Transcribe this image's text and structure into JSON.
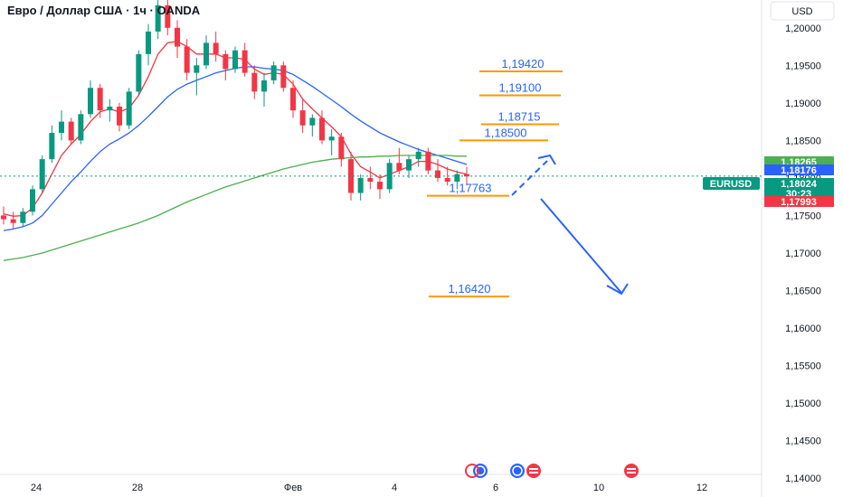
{
  "header": {
    "title": "Евро / Доллар США · 1ч · OANDA",
    "currency_button": "USD"
  },
  "price_axis": {
    "ticks": [
      "1,20000",
      "1,19500",
      "1,19000",
      "1,18500",
      "1,18000",
      "1,17500",
      "1,17000",
      "1,16500",
      "1,16000",
      "1,15500",
      "1,15000",
      "1,14500",
      "1,14000"
    ],
    "badges": [
      {
        "name": "upper-price-badge",
        "text": "1,18265",
        "color": "#4caf50"
      },
      {
        "name": "ma-price-badge",
        "text": "1,18176",
        "color": "#2962ff"
      },
      {
        "name": "last-price-badge",
        "text": "1,18024",
        "color": "#089981"
      },
      {
        "name": "countdown-badge",
        "text": "30:23",
        "color": "#089981"
      },
      {
        "name": "lower-price-badge",
        "text": "1,17993",
        "color": "#f23645"
      }
    ],
    "symbol_badge": "EURUSD"
  },
  "time_axis": {
    "ticks": [
      "24",
      "28",
      "Фев",
      "4",
      "6",
      "10",
      "12"
    ]
  },
  "chart_data": {
    "type": "candlestick",
    "symbol": "EURUSD",
    "interval": "1ч",
    "ylim": [
      1.1375,
      1.2025
    ],
    "last_price": 1.18024,
    "grid": false,
    "levels": [
      {
        "text": "1,19420",
        "value": 1.1942
      },
      {
        "text": "1,19100",
        "value": 1.191
      },
      {
        "text": "1,18715",
        "value": 1.18715
      },
      {
        "text": "1,18500",
        "value": 1.185
      },
      {
        "text": "1,17763",
        "value": 1.17763
      },
      {
        "text": "1,16420",
        "value": 1.1642
      }
    ],
    "series": [
      {
        "name": "candles",
        "values": [
          [
            1.175,
            1.1762,
            1.1738,
            1.1745
          ],
          [
            1.1745,
            1.1755,
            1.1732,
            1.174
          ],
          [
            1.174,
            1.176,
            1.1735,
            1.1755
          ],
          [
            1.1755,
            1.179,
            1.175,
            1.1785
          ],
          [
            1.1785,
            1.183,
            1.178,
            1.1825
          ],
          [
            1.1825,
            1.187,
            1.182,
            1.186
          ],
          [
            1.186,
            1.189,
            1.185,
            1.1875
          ],
          [
            1.1875,
            1.188,
            1.1845,
            1.185
          ],
          [
            1.185,
            1.189,
            1.1845,
            1.1885
          ],
          [
            1.1885,
            1.193,
            1.188,
            1.192
          ],
          [
            1.192,
            1.1925,
            1.188,
            1.189
          ],
          [
            1.189,
            1.1905,
            1.1875,
            1.1895
          ],
          [
            1.1895,
            1.19,
            1.1862,
            1.187
          ],
          [
            1.187,
            1.192,
            1.1865,
            1.1915
          ],
          [
            1.1915,
            1.197,
            1.191,
            1.1965
          ],
          [
            1.1965,
            1.2005,
            1.195,
            1.1995
          ],
          [
            1.1995,
            1.204,
            1.1985,
            1.203
          ],
          [
            1.203,
            1.2045,
            1.199,
            1.2
          ],
          [
            1.2,
            1.201,
            1.196,
            1.1975
          ],
          [
            1.1975,
            1.1985,
            1.193,
            1.194
          ],
          [
            1.194,
            1.196,
            1.191,
            1.195
          ],
          [
            1.195,
            1.199,
            1.1945,
            1.198
          ],
          [
            1.198,
            1.1995,
            1.1955,
            1.1965
          ],
          [
            1.1965,
            1.197,
            1.193,
            1.1945
          ],
          [
            1.1945,
            1.1975,
            1.194,
            1.197
          ],
          [
            1.197,
            1.198,
            1.1935,
            1.194
          ],
          [
            1.194,
            1.195,
            1.1905,
            1.1915
          ],
          [
            1.1915,
            1.194,
            1.1895,
            1.193
          ],
          [
            1.193,
            1.1955,
            1.1925,
            1.195
          ],
          [
            1.195,
            1.1955,
            1.1915,
            1.192
          ],
          [
            1.192,
            1.193,
            1.188,
            1.189
          ],
          [
            1.189,
            1.1905,
            1.186,
            1.187
          ],
          [
            1.187,
            1.1885,
            1.1855,
            1.188
          ],
          [
            1.188,
            1.189,
            1.1845,
            1.185
          ],
          [
            1.185,
            1.1865,
            1.183,
            1.1855
          ],
          [
            1.1855,
            1.186,
            1.1815,
            1.1825
          ],
          [
            1.1825,
            1.1835,
            1.177,
            1.178
          ],
          [
            1.178,
            1.1805,
            1.177,
            1.18
          ],
          [
            1.18,
            1.1815,
            1.1785,
            1.1795
          ],
          [
            1.1795,
            1.1805,
            1.1772,
            1.1785
          ],
          [
            1.1785,
            1.1825,
            1.178,
            1.182
          ],
          [
            1.182,
            1.184,
            1.1805,
            1.181
          ],
          [
            1.181,
            1.183,
            1.18,
            1.1825
          ],
          [
            1.1825,
            1.184,
            1.1815,
            1.1835
          ],
          [
            1.1835,
            1.184,
            1.1805,
            1.181
          ],
          [
            1.181,
            1.1825,
            1.1795,
            1.18
          ],
          [
            1.18,
            1.1815,
            1.179,
            1.1795
          ],
          [
            1.1795,
            1.181,
            1.1785,
            1.1805
          ],
          [
            1.1805,
            1.1815,
            1.179,
            1.1802
          ]
        ]
      },
      {
        "name": "ma-fast",
        "color": "#f23645",
        "values": [
          1.1752,
          1.1749,
          1.175,
          1.176,
          1.178,
          1.1805,
          1.183,
          1.1845,
          1.1858,
          1.1875,
          1.1888,
          1.1892,
          1.1888,
          1.1893,
          1.191,
          1.1935,
          1.1965,
          1.198,
          1.1982,
          1.1975,
          1.1965,
          1.1965,
          1.1965,
          1.196,
          1.196,
          1.1958,
          1.1945,
          1.1938,
          1.194,
          1.1938,
          1.1925,
          1.1905,
          1.1892,
          1.188,
          1.1868,
          1.1855,
          1.1832,
          1.1815,
          1.1808,
          1.18,
          1.1805,
          1.181,
          1.1815,
          1.1822,
          1.1822,
          1.1818,
          1.1812,
          1.1808,
          1.1805
        ]
      },
      {
        "name": "ma-mid",
        "color": "#2962ff",
        "values": [
          1.173,
          1.1732,
          1.1735,
          1.174,
          1.175,
          1.1765,
          1.178,
          1.1795,
          1.1808,
          1.1822,
          1.1835,
          1.1845,
          1.1852,
          1.186,
          1.187,
          1.1882,
          1.1895,
          1.1908,
          1.1918,
          1.1925,
          1.193,
          1.1935,
          1.194,
          1.1943,
          1.1946,
          1.1948,
          1.1948,
          1.1946,
          1.1945,
          1.1943,
          1.1938,
          1.193,
          1.1922,
          1.1913,
          1.1904,
          1.1895,
          1.1885,
          1.1876,
          1.1868,
          1.186,
          1.1854,
          1.1848,
          1.1843,
          1.1838,
          1.1834,
          1.183,
          1.1826,
          1.1822,
          1.1818
        ]
      },
      {
        "name": "ma-slow",
        "color": "#4caf50",
        "values": [
          1.169,
          1.1692,
          1.1694,
          1.1697,
          1.17,
          1.1704,
          1.1708,
          1.1712,
          1.1716,
          1.172,
          1.1724,
          1.1728,
          1.1732,
          1.1736,
          1.174,
          1.1745,
          1.175,
          1.1756,
          1.1762,
          1.1768,
          1.1773,
          1.1778,
          1.1783,
          1.1788,
          1.1792,
          1.1796,
          1.18,
          1.1804,
          1.1808,
          1.1812,
          1.1815,
          1.1818,
          1.1821,
          1.1823,
          1.1825,
          1.1826,
          1.1827,
          1.1828,
          1.1828,
          1.1829,
          1.1829,
          1.183,
          1.183,
          1.183,
          1.183,
          1.183,
          1.183,
          1.1829,
          1.1829
        ]
      }
    ]
  },
  "events": [
    {
      "name": "event-icon-1"
    },
    {
      "name": "event-icon-2"
    },
    {
      "name": "event-icon-3"
    }
  ]
}
